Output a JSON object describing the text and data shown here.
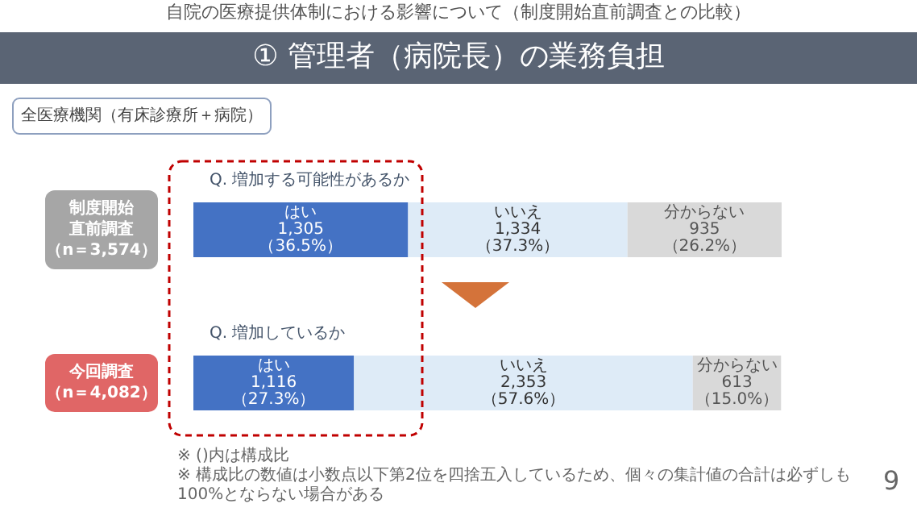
{
  "chart_data": {
    "type": "bar",
    "orientation": "horizontal",
    "stacked": true,
    "subtitle": "自院の医療提供体制における影響について（制度開始直前調査との比較）",
    "title": "① 管理者（病院長）の業務負担",
    "categories": [
      "制度開始直前調査（n＝3,574）",
      "今回調査（n＝4,082）"
    ],
    "series": [
      {
        "name": "はい",
        "color": "#4472c4",
        "values": [
          36.5,
          27.3
        ],
        "value_labels": [
          "1,305\n（36.5%）",
          "1,116\n（27.3%）"
        ]
      },
      {
        "name": "いいえ",
        "color": "#deebf7",
        "values": [
          37.3,
          57.6
        ],
        "value_labels": [
          "1,334\n（37.3%）",
          "2,353\n（57.6%）"
        ]
      },
      {
        "name": "分からない",
        "color": "#d9d9d9",
        "values": [
          26.2,
          15.0
        ],
        "value_labels": [
          "935\n（26.2%）",
          "613\n（15.0%）"
        ]
      }
    ],
    "annotations": [
      "全医療機関（有床診療所＋病院）",
      "Q. 増加する可能性があるか",
      "Q. 増加しているか",
      "※ ()内は構成比",
      "※ 構成比の数値は小数点以下第2位を四捨五入しているため、個々の集計値の合計は必ずしも100%とならない場合がある",
      "9"
    ],
    "legend": false
  }
}
